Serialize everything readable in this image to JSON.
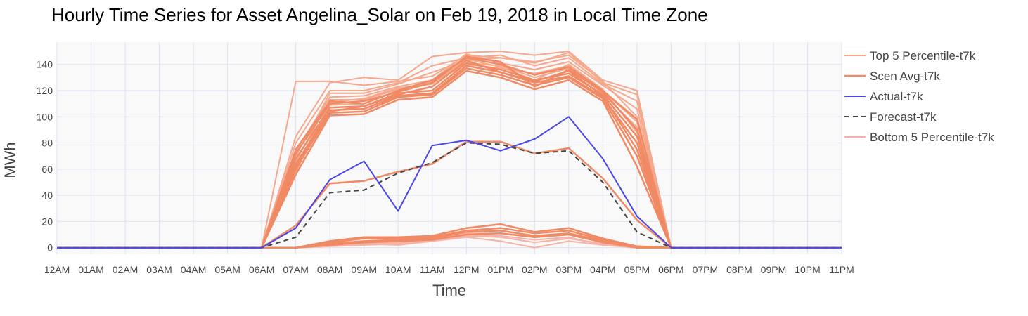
{
  "chart_data": {
    "type": "line",
    "title": "Hourly Time Series for Asset Angelina_Solar on Feb 19, 2018 in Local Time Zone",
    "xlabel": "Time",
    "ylabel": "MWh",
    "ylim": [
      -5,
      157
    ],
    "yticks": [
      0,
      20,
      40,
      60,
      80,
      100,
      120,
      140
    ],
    "grid": true,
    "legend_position": "right",
    "categories": [
      "12AM",
      "01AM",
      "02AM",
      "03AM",
      "04AM",
      "05AM",
      "06AM",
      "07AM",
      "08AM",
      "09AM",
      "10AM",
      "11AM",
      "12PM",
      "01PM",
      "02PM",
      "03PM",
      "04PM",
      "05PM",
      "06PM",
      "07PM",
      "08PM",
      "09PM",
      "10PM",
      "11PM"
    ],
    "series": [
      {
        "name": "Top 5 Percentile-t7k",
        "role": "top",
        "color": "#f5a88c",
        "values": [
          0,
          0,
          0,
          0,
          0,
          0,
          0,
          127,
          127,
          124,
          127,
          131,
          147,
          145,
          141,
          149,
          126,
          117,
          0,
          0,
          0,
          0,
          0,
          0
        ]
      },
      {
        "role": "top",
        "color": "#f5a88c",
        "values": [
          0,
          0,
          0,
          0,
          0,
          0,
          0,
          85,
          126,
          130,
          128,
          146,
          149,
          150,
          147,
          150,
          128,
          120,
          0,
          0,
          0,
          0,
          0,
          0
        ]
      },
      {
        "role": "top",
        "color": "#f5a88c",
        "values": [
          0,
          0,
          0,
          0,
          0,
          0,
          0,
          80,
          120,
          120,
          126,
          139,
          145,
          147,
          139,
          145,
          125,
          112,
          0,
          0,
          0,
          0,
          0,
          0
        ]
      },
      {
        "role": "top",
        "color": "#f5a88c",
        "values": [
          0,
          0,
          0,
          0,
          0,
          0,
          0,
          74,
          115,
          116,
          123,
          128,
          148,
          141,
          136,
          142,
          124,
          106,
          0,
          0,
          0,
          0,
          0,
          0
        ]
      },
      {
        "role": "top",
        "color": "#f5a88c",
        "values": [
          0,
          0,
          0,
          0,
          0,
          0,
          0,
          70,
          118,
          118,
          125,
          134,
          143,
          145,
          142,
          147,
          127,
          100,
          0,
          0,
          0,
          0,
          0,
          0
        ]
      },
      {
        "role": "top",
        "color": "#f5a88c",
        "values": [
          0,
          0,
          0,
          0,
          0,
          0,
          0,
          66,
          113,
          113,
          121,
          126,
          140,
          137,
          133,
          139,
          120,
          96,
          0,
          0,
          0,
          0,
          0,
          0
        ]
      },
      {
        "role": "top",
        "color": "#f5a88c",
        "values": [
          0,
          0,
          0,
          0,
          0,
          0,
          0,
          62,
          109,
          110,
          120,
          127,
          141,
          139,
          130,
          137,
          118,
          92,
          0,
          0,
          0,
          0,
          0,
          0
        ]
      },
      {
        "role": "top",
        "color": "#f5a88c",
        "values": [
          0,
          0,
          0,
          0,
          0,
          0,
          0,
          58,
          111,
          114,
          122,
          125,
          144,
          138,
          128,
          140,
          121,
          88,
          0,
          0,
          0,
          0,
          0,
          0
        ]
      },
      {
        "name": "Scen Avg-t7k",
        "role": "scen",
        "color": "#f08a64",
        "width": 2.5,
        "values": [
          0,
          0,
          0,
          0,
          0,
          0,
          0,
          75,
          112,
          110,
          120,
          128,
          145,
          140,
          132,
          138,
          120,
          98,
          0,
          0,
          0,
          0,
          0,
          0
        ]
      },
      {
        "role": "scen",
        "color": "#f08a64",
        "width": 2.5,
        "values": [
          0,
          0,
          0,
          0,
          0,
          0,
          0,
          68,
          107,
          108,
          118,
          120,
          141,
          136,
          128,
          133,
          117,
          85,
          0,
          0,
          0,
          0,
          0,
          0
        ]
      },
      {
        "role": "scen",
        "color": "#f08a64",
        "width": 2.5,
        "values": [
          0,
          0,
          0,
          0,
          0,
          0,
          0,
          64,
          105,
          106,
          116,
          118,
          139,
          134,
          126,
          131,
          115,
          80,
          0,
          0,
          0,
          0,
          0,
          0
        ]
      },
      {
        "role": "scen",
        "color": "#f08a64",
        "width": 2.5,
        "values": [
          0,
          0,
          0,
          0,
          0,
          0,
          0,
          60,
          103,
          104,
          115,
          117,
          137,
          132,
          124,
          130,
          114,
          70,
          0,
          0,
          0,
          0,
          0,
          0
        ]
      },
      {
        "role": "scen",
        "color": "#f08a64",
        "width": 2.5,
        "values": [
          0,
          0,
          0,
          0,
          0,
          0,
          0,
          56,
          101,
          102,
          113,
          115,
          135,
          130,
          121,
          128,
          112,
          62,
          0,
          0,
          0,
          0,
          0,
          0
        ]
      },
      {
        "role": "scen",
        "color": "#f08a64",
        "width": 2.5,
        "values": [
          0,
          0,
          0,
          0,
          0,
          0,
          0,
          62,
          104,
          108,
          117,
          123,
          143,
          134,
          127,
          135,
          116,
          75,
          0,
          0,
          0,
          0,
          0,
          0
        ]
      },
      {
        "role": "scen",
        "color": "#f08a64",
        "width": 2.5,
        "values": [
          0,
          0,
          0,
          0,
          0,
          0,
          0,
          72,
          110,
          112,
          119,
          126,
          146,
          142,
          123,
          136,
          119,
          90,
          0,
          0,
          0,
          0,
          0,
          0
        ]
      },
      {
        "role": "scen",
        "color": "#f08a64",
        "width": 2.5,
        "values": [
          0,
          0,
          0,
          0,
          0,
          0,
          0,
          17,
          49,
          51,
          58,
          64,
          81,
          81,
          72,
          76,
          53,
          21,
          0,
          0,
          0,
          0,
          0,
          0
        ]
      },
      {
        "role": "scen",
        "color": "#f08a64",
        "width": 2.5,
        "values": [
          0,
          0,
          0,
          0,
          0,
          0,
          0,
          0,
          5,
          8,
          8,
          9,
          15,
          18,
          12,
          15,
          7,
          1,
          0,
          0,
          0,
          0,
          0,
          0
        ]
      },
      {
        "role": "scen",
        "color": "#f08a64",
        "width": 2.5,
        "values": [
          0,
          0,
          0,
          0,
          0,
          0,
          0,
          0,
          4,
          7,
          7,
          8,
          13,
          15,
          11,
          13,
          6,
          1,
          0,
          0,
          0,
          0,
          0,
          0
        ]
      },
      {
        "role": "scen",
        "color": "#f08a64",
        "width": 2.5,
        "values": [
          0,
          0,
          0,
          0,
          0,
          0,
          0,
          0,
          3,
          5,
          6,
          7,
          12,
          13,
          9,
          11,
          5,
          0,
          0,
          0,
          0,
          0,
          0,
          0
        ]
      },
      {
        "role": "scen",
        "color": "#f08a64",
        "width": 2.5,
        "values": [
          0,
          0,
          0,
          0,
          0,
          0,
          0,
          0,
          2,
          4,
          5,
          6,
          10,
          11,
          8,
          10,
          4,
          0,
          0,
          0,
          0,
          0,
          0,
          0
        ]
      },
      {
        "name": "Actual-t7k",
        "role": "actual",
        "color": "#4b47e6",
        "width": 2,
        "values": [
          0,
          0,
          0,
          0,
          0,
          0,
          0,
          15,
          52,
          66,
          28,
          78,
          82,
          74,
          83,
          100,
          68,
          24,
          0,
          0,
          0,
          0,
          0,
          0
        ]
      },
      {
        "name": "Forecast-t7k",
        "role": "forecast",
        "color": "#444444",
        "width": 2,
        "dash": "7,5",
        "values": [
          0,
          0,
          0,
          0,
          0,
          0,
          0,
          8,
          42,
          44,
          57,
          65,
          80,
          79,
          72,
          74,
          50,
          12,
          0,
          0,
          0,
          0,
          0,
          0
        ]
      },
      {
        "name": "Bottom 5 Percentile-t7k",
        "role": "bottom",
        "color": "#f7b2a6",
        "values": [
          0,
          0,
          0,
          0,
          0,
          0,
          0,
          0,
          1,
          2,
          3,
          5,
          8,
          5,
          0,
          5,
          2,
          0,
          0,
          0,
          0,
          0,
          0,
          0
        ]
      },
      {
        "role": "bottom",
        "color": "#f7b2a6",
        "values": [
          0,
          0,
          0,
          0,
          0,
          0,
          0,
          0,
          2,
          3,
          4,
          6,
          9,
          8,
          4,
          7,
          3,
          0,
          0,
          0,
          0,
          0,
          0,
          0
        ]
      },
      {
        "role": "bottom",
        "color": "#f7b2a6",
        "values": [
          0,
          0,
          0,
          0,
          0,
          0,
          0,
          0,
          1,
          3,
          2,
          5,
          10,
          9,
          6,
          8,
          2,
          0,
          0,
          0,
          0,
          0,
          0,
          0
        ]
      },
      {
        "role": "bottom",
        "color": "#f7b2a6",
        "values": [
          0,
          0,
          0,
          0,
          0,
          0,
          0,
          0,
          3,
          4,
          5,
          6,
          11,
          11,
          8,
          10,
          4,
          1,
          0,
          0,
          0,
          0,
          0,
          0
        ]
      }
    ]
  }
}
